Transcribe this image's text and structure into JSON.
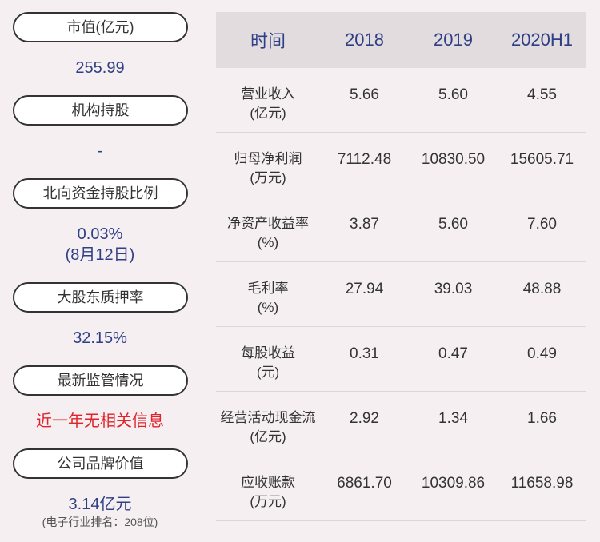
{
  "left_panel": {
    "items": [
      {
        "label": "市值(亿元)",
        "value": "255.99"
      },
      {
        "label": "机构持股",
        "value": "-"
      },
      {
        "label": "北向资金持股比例",
        "value": "0.03%",
        "value2": "(8月12日)"
      },
      {
        "label": "大股东质押率",
        "value": "32.15%"
      },
      {
        "label": "最新监管情况",
        "value": "近一年无相关信息"
      },
      {
        "label": "公司品牌价值",
        "value": "3.14亿元",
        "note": "(电子行业排名：208位)"
      }
    ]
  },
  "table": {
    "headers": [
      "时间",
      "2018",
      "2019",
      "2020H1"
    ],
    "rows": [
      {
        "name": "营业收入",
        "unit": "(亿元)",
        "values": [
          "5.66",
          "5.60",
          "4.55"
        ]
      },
      {
        "name": "归母净利润",
        "unit": "(万元)",
        "values": [
          "7112.48",
          "10830.50",
          "15605.71"
        ]
      },
      {
        "name": "净资产收益率",
        "unit": "(%)",
        "values": [
          "3.87",
          "5.60",
          "7.60"
        ]
      },
      {
        "name": "毛利率",
        "unit": "(%)",
        "values": [
          "27.94",
          "39.03",
          "48.88"
        ]
      },
      {
        "name": "每股收益",
        "unit": "(元)",
        "values": [
          "0.31",
          "0.47",
          "0.49"
        ]
      },
      {
        "name": "经营活动现金流",
        "unit": "(亿元)",
        "values": [
          "2.92",
          "1.34",
          "1.66"
        ]
      },
      {
        "name": "应收账款",
        "unit": "(万元)",
        "values": [
          "6861.70",
          "10309.86",
          "11658.98"
        ]
      }
    ]
  },
  "colors": {
    "background": "#f5eff2",
    "value_blue": "#2e3f86",
    "alert_red": "#e0242b",
    "header_bg": "#e2dcdf"
  }
}
